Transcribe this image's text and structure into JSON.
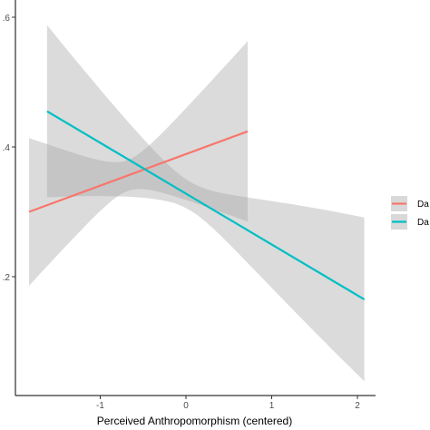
{
  "chart_data": {
    "type": "line",
    "xlabel": "Perceived Anthropomorphism (centered)",
    "ylabel": "",
    "xlim": [
      -1.95,
      2.3
    ],
    "ylim": [
      0.035,
      0.637
    ],
    "x_ticks": [
      -1,
      0,
      1,
      2
    ],
    "x_tick_labels": [
      "-1",
      "0",
      "1",
      "2"
    ],
    "y_ticks": [
      0.2,
      0.4,
      0.6
    ],
    "y_tick_labels": [
      ".2",
      ".4",
      ".6"
    ],
    "grid": false,
    "legend_position": "right",
    "series": [
      {
        "name": "Da",
        "color": "#F8766D",
        "x": [
          -1.83,
          0.72
        ],
        "y": [
          0.3,
          0.424
        ],
        "ci_lower": [
          0.325,
          0.29
        ],
        "ci_upper": [
          0.59,
          0.557
        ]
      },
      {
        "name": "Da",
        "color": "#00BFC4",
        "x": [
          -1.62,
          2.08
        ],
        "y": [
          0.455,
          0.165
        ],
        "ci_lower": [
          0.145,
          0.045
        ],
        "ci_upper": [
          0.455,
          0.287
        ]
      }
    ],
    "band_color": "#a6a6a6"
  }
}
